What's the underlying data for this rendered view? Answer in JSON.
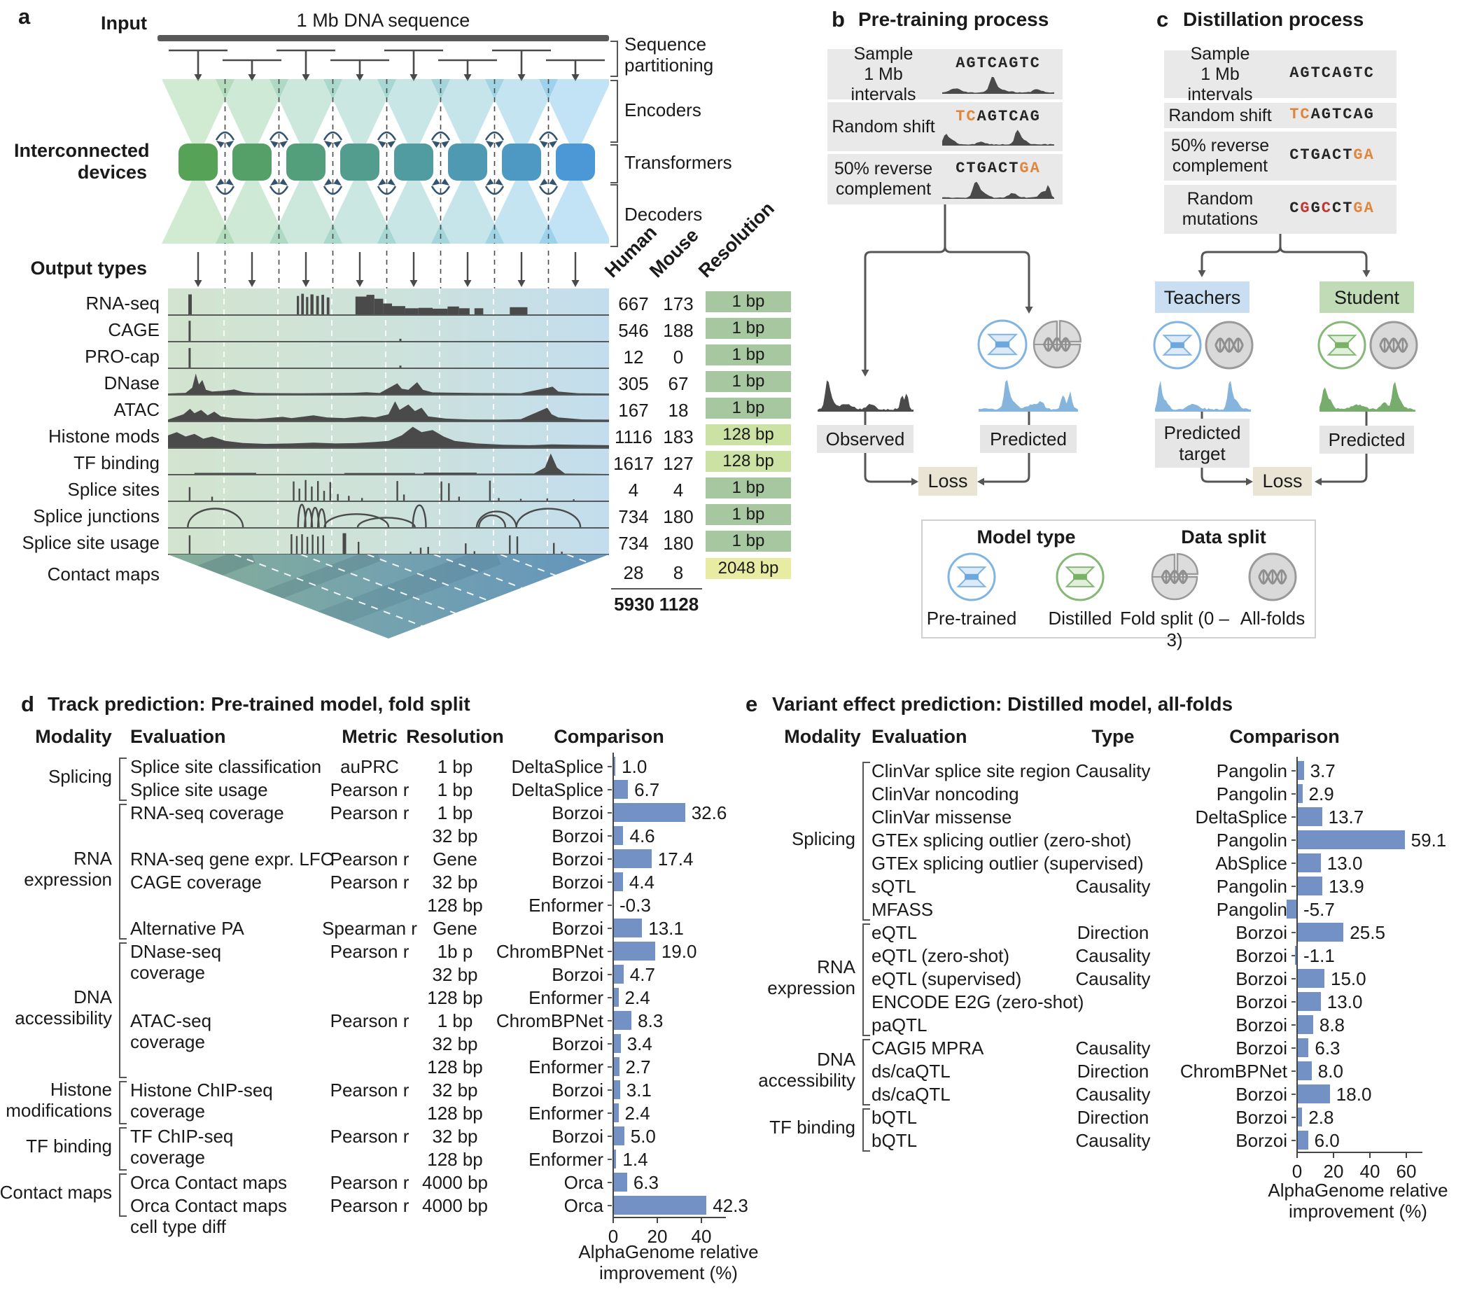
{
  "colors": {
    "bar_blue": "#7491c6",
    "res_1bp": "#a6c79f",
    "res_128bp": "#cbe2a4",
    "res_2048bp": "#e7eca2",
    "orange": "#e0863c",
    "red": "#c23535",
    "teachers_blue": "#c9def1",
    "student_green": "#c2dbb7",
    "loss_beige": "#e9e4d4",
    "box_gray": "#e9e9e9",
    "signal_dark": "#4a4a4a",
    "signal_blue": "#85b5dc",
    "signal_green": "#76ad6c"
  },
  "panel_a": {
    "label": "a",
    "input_label": "Input",
    "input_bar_label": "1 Mb DNA sequence",
    "devices_label": "Interconnected\ndevices",
    "output_label": "Output types",
    "right_labels": {
      "partitioning": "Sequence\npartitioning",
      "encoders": "Encoders",
      "transformers": "Transformers",
      "decoders": "Decoders"
    },
    "col_headers": {
      "human": "Human",
      "mouse": "Mouse",
      "resolution": "Resolution"
    },
    "tracks": [
      {
        "name": "RNA-seq",
        "human": "667",
        "mouse": "173",
        "resolution": "1 bp",
        "res_class": "g1"
      },
      {
        "name": "CAGE",
        "human": "546",
        "mouse": "188",
        "resolution": "1 bp",
        "res_class": "g1"
      },
      {
        "name": "PRO-cap",
        "human": "12",
        "mouse": "0",
        "resolution": "1 bp",
        "res_class": "g1"
      },
      {
        "name": "DNase",
        "human": "305",
        "mouse": "67",
        "resolution": "1 bp",
        "res_class": "g1"
      },
      {
        "name": "ATAC",
        "human": "167",
        "mouse": "18",
        "resolution": "1 bp",
        "res_class": "g1"
      },
      {
        "name": "Histone mods",
        "human": "1116",
        "mouse": "183",
        "resolution": "128 bp",
        "res_class": "g128"
      },
      {
        "name": "TF binding",
        "human": "1617",
        "mouse": "127",
        "resolution": "128 bp",
        "res_class": "g128"
      },
      {
        "name": "Splice sites",
        "human": "4",
        "mouse": "4",
        "resolution": "1 bp",
        "res_class": "g1"
      },
      {
        "name": "Splice junctions",
        "human": "734",
        "mouse": "180",
        "resolution": "1 bp",
        "res_class": "g1"
      },
      {
        "name": "Splice site usage",
        "human": "734",
        "mouse": "180",
        "resolution": "1 bp",
        "res_class": "g1"
      },
      {
        "name": "Contact maps",
        "human": "28",
        "mouse": "8",
        "resolution": "2048 bp",
        "res_class": "g2048"
      }
    ],
    "totals": {
      "human": "5930",
      "mouse": "1128"
    }
  },
  "panel_b": {
    "label": "b",
    "title": "Pre-training process",
    "steps": [
      {
        "label": "Sample\n1 Mb intervals",
        "seq": [
          {
            "t": "AGTCAGTC",
            "c": "k"
          }
        ]
      },
      {
        "label": "Random shift",
        "seq": [
          {
            "t": "TC",
            "c": "o"
          },
          {
            "t": "AGTCAG",
            "c": "k"
          }
        ]
      },
      {
        "label": "50% reverse\ncomplement",
        "seq": [
          {
            "t": "CTGACT",
            "c": "k"
          },
          {
            "t": "GA",
            "c": "o"
          }
        ]
      }
    ],
    "observed_label": "Observed",
    "predicted_label": "Predicted",
    "loss_label": "Loss"
  },
  "panel_c": {
    "label": "c",
    "title": "Distillation process",
    "steps": [
      {
        "label": "Sample\n1 Mb intervals",
        "seq": [
          {
            "t": "AGTCAGTC",
            "c": "k"
          }
        ]
      },
      {
        "label": "Random shift",
        "seq": [
          {
            "t": "TC",
            "c": "o"
          },
          {
            "t": "AGTCAG",
            "c": "k"
          }
        ]
      },
      {
        "label": "50% reverse\ncomplement",
        "seq": [
          {
            "t": "CTGACT",
            "c": "k"
          },
          {
            "t": "GA",
            "c": "o"
          }
        ]
      },
      {
        "label": "Random\nmutations",
        "seq": [
          {
            "t": "C",
            "c": "k"
          },
          {
            "t": "G",
            "c": "r"
          },
          {
            "t": "G",
            "c": "k"
          },
          {
            "t": "C",
            "c": "r"
          },
          {
            "t": "CT",
            "c": "k"
          },
          {
            "t": "GA",
            "c": "o"
          }
        ]
      }
    ],
    "teachers_label": "Teachers",
    "student_label": "Student",
    "predicted_target_label": "Predicted\ntarget",
    "predicted_label": "Predicted",
    "loss_label": "Loss"
  },
  "legend": {
    "model_type_title": "Model type",
    "data_split_title": "Data split",
    "items": [
      {
        "label": "Pre-trained",
        "icon": "pretrained"
      },
      {
        "label": "Distilled",
        "icon": "distilled"
      },
      {
        "label": "Fold split (0 – 3)",
        "icon": "foldsplit"
      },
      {
        "label": "All-folds",
        "icon": "allfolds"
      }
    ]
  },
  "panel_d": {
    "label": "d",
    "title": "Track prediction: Pre-trained model, fold split",
    "columns": [
      "Modality",
      "Evaluation",
      "Metric",
      "Resolution",
      "Comparison"
    ],
    "axis_label": "AlphaGenome relative improvement (%)",
    "axis_ticks": [
      0,
      20,
      40
    ],
    "groups": [
      {
        "label": "Splicing",
        "start": 0,
        "end": 1
      },
      {
        "label": "RNA\nexpression",
        "start": 2,
        "end": 7
      },
      {
        "label": "DNA\naccessibility",
        "start": 8,
        "end": 13
      },
      {
        "label": "Histone\nmodifications",
        "start": 14,
        "end": 15
      },
      {
        "label": "TF binding",
        "start": 16,
        "end": 17
      },
      {
        "label": "Contact maps",
        "start": 18,
        "end": 19
      }
    ],
    "rows": [
      {
        "evaluation": "Splice site classification",
        "metric": "auPRC",
        "resolution": "1 bp",
        "comparison": "DeltaSplice",
        "value": 1.0,
        "value_label": "1.0"
      },
      {
        "evaluation": "Splice site usage",
        "metric": "Pearson r",
        "resolution": "1 bp",
        "comparison": "DeltaSplice",
        "value": 6.7,
        "value_label": "6.7"
      },
      {
        "evaluation": "RNA-seq coverage",
        "metric": "Pearson r",
        "resolution": "1 bp",
        "comparison": "Borzoi",
        "value": 32.6,
        "value_label": "32.6"
      },
      {
        "evaluation": "",
        "metric": "",
        "resolution": "32 bp",
        "comparison": "Borzoi",
        "value": 4.6,
        "value_label": "4.6"
      },
      {
        "evaluation": "RNA-seq gene expr. LFC",
        "metric": "Pearson r",
        "resolution": "Gene",
        "comparison": "Borzoi",
        "value": 17.4,
        "value_label": "17.4"
      },
      {
        "evaluation": "CAGE coverage",
        "metric": "Pearson r",
        "resolution": "32 bp",
        "comparison": "Borzoi",
        "value": 4.4,
        "value_label": "4.4"
      },
      {
        "evaluation": "",
        "metric": "",
        "resolution": "128 bp",
        "comparison": "Enformer",
        "value": -0.3,
        "value_label": "-0.3"
      },
      {
        "evaluation": "Alternative PA",
        "metric": "Spearman r",
        "resolution": "Gene",
        "comparison": "Borzoi",
        "value": 13.1,
        "value_label": "13.1"
      },
      {
        "evaluation": "DNase-seq\ncoverage",
        "metric": "Pearson r",
        "resolution": "1b p",
        "comparison": "ChromBPNet",
        "value": 19.0,
        "value_label": "19.0"
      },
      {
        "evaluation": "",
        "metric": "",
        "resolution": "32 bp",
        "comparison": "Borzoi",
        "value": 4.7,
        "value_label": "4.7"
      },
      {
        "evaluation": "",
        "metric": "",
        "resolution": "128 bp",
        "comparison": "Enformer",
        "value": 2.4,
        "value_label": "2.4"
      },
      {
        "evaluation": "ATAC-seq\ncoverage",
        "metric": "Pearson r",
        "resolution": "1 bp",
        "comparison": "ChromBPNet",
        "value": 8.3,
        "value_label": "8.3"
      },
      {
        "evaluation": "",
        "metric": "",
        "resolution": "32 bp",
        "comparison": "Borzoi",
        "value": 3.4,
        "value_label": "3.4"
      },
      {
        "evaluation": "",
        "metric": "",
        "resolution": "128 bp",
        "comparison": "Enformer",
        "value": 2.7,
        "value_label": "2.7"
      },
      {
        "evaluation": "Histone ChIP-seq\ncoverage",
        "metric": "Pearson r",
        "resolution": "32 bp",
        "comparison": "Borzoi",
        "value": 3.1,
        "value_label": "3.1"
      },
      {
        "evaluation": "",
        "metric": "",
        "resolution": "128 bp",
        "comparison": "Enformer",
        "value": 2.4,
        "value_label": "2.4"
      },
      {
        "evaluation": "TF ChIP-seq\ncoverage",
        "metric": "Pearson r",
        "resolution": "32 bp",
        "comparison": "Borzoi",
        "value": 5.0,
        "value_label": "5.0"
      },
      {
        "evaluation": "",
        "metric": "",
        "resolution": "128 bp",
        "comparison": "Enformer",
        "value": 1.4,
        "value_label": "1.4"
      },
      {
        "evaluation": "Orca Contact maps",
        "metric": "Pearson r",
        "resolution": "4000 bp",
        "comparison": "Orca",
        "value": 6.3,
        "value_label": "6.3"
      },
      {
        "evaluation": "Orca Contact maps\ncell type diff",
        "metric": "Pearson r",
        "resolution": "4000 bp",
        "comparison": "Orca",
        "value": 42.3,
        "value_label": "42.3"
      }
    ]
  },
  "panel_e": {
    "label": "e",
    "title": "Variant effect prediction: Distilled model, all-folds",
    "columns": [
      "Modality",
      "Evaluation",
      "Type",
      "Comparison"
    ],
    "axis_label": "AlphaGenome relative improvement (%)",
    "axis_ticks": [
      0,
      20,
      40,
      60
    ],
    "groups": [
      {
        "label": "Splicing",
        "start": 0,
        "end": 6
      },
      {
        "label": "RNA\nexpression",
        "start": 7,
        "end": 11
      },
      {
        "label": "DNA\naccessibility",
        "start": 12,
        "end": 14
      },
      {
        "label": "TF binding",
        "start": 15,
        "end": 16
      }
    ],
    "rows": [
      {
        "evaluation": "ClinVar splice site region",
        "type": "Causality",
        "comparison": "Pangolin",
        "value": 3.7,
        "value_label": "3.7"
      },
      {
        "evaluation": "ClinVar noncoding",
        "type": "",
        "comparison": "Pangolin",
        "value": 2.9,
        "value_label": "2.9"
      },
      {
        "evaluation": "ClinVar missense",
        "type": "",
        "comparison": "DeltaSplice",
        "value": 13.7,
        "value_label": "13.7"
      },
      {
        "evaluation": "GTEx splicing outlier (zero-shot)",
        "type": "",
        "comparison": "Pangolin",
        "value": 59.1,
        "value_label": "59.1"
      },
      {
        "evaluation": "GTEx splicing outlier (supervised)",
        "type": "",
        "comparison": "AbSplice",
        "value": 13.0,
        "value_label": "13.0"
      },
      {
        "evaluation": "sQTL",
        "type": "Causality",
        "comparison": "Pangolin",
        "value": 13.9,
        "value_label": "13.9"
      },
      {
        "evaluation": "MFASS",
        "type": "",
        "comparison": "Pangolin",
        "value": -5.7,
        "value_label": "-5.7"
      },
      {
        "evaluation": "eQTL",
        "type": "Direction",
        "comparison": "Borzoi",
        "value": 25.5,
        "value_label": "25.5"
      },
      {
        "evaluation": "eQTL (zero-shot)",
        "type": "Causality",
        "comparison": "Borzoi",
        "value": -1.1,
        "value_label": "-1.1"
      },
      {
        "evaluation": "eQTL (supervised)",
        "type": "Causality",
        "comparison": "Borzoi",
        "value": 15.0,
        "value_label": "15.0"
      },
      {
        "evaluation": "ENCODE E2G (zero-shot)",
        "type": "",
        "comparison": "Borzoi",
        "value": 13.0,
        "value_label": "13.0"
      },
      {
        "evaluation": "paQTL",
        "type": "",
        "comparison": "Borzoi",
        "value": 8.8,
        "value_label": "8.8"
      },
      {
        "evaluation": "CAGI5 MPRA",
        "type": "Causality",
        "comparison": "Borzoi",
        "value": 6.3,
        "value_label": "6.3"
      },
      {
        "evaluation": "ds/caQTL",
        "type": "Direction",
        "comparison": "ChromBPNet",
        "value": 8.0,
        "value_label": "8.0"
      },
      {
        "evaluation": "ds/caQTL",
        "type": "Causality",
        "comparison": "Borzoi",
        "value": 18.0,
        "value_label": "18.0"
      },
      {
        "evaluation": "bQTL",
        "type": "Direction",
        "comparison": "Borzoi",
        "value": 2.8,
        "value_label": "2.8"
      },
      {
        "evaluation": "bQTL",
        "type": "Causality",
        "comparison": "Borzoi",
        "value": 6.0,
        "value_label": "6.0"
      }
    ]
  },
  "chart_data": [
    {
      "type": "bar",
      "panel": "d",
      "title": "Track prediction: Pre-trained model, fold split",
      "orientation": "horizontal",
      "xlabel": "AlphaGenome relative improvement (%)",
      "xticks": [
        0,
        20,
        40
      ],
      "xlim": [
        -2,
        48
      ],
      "grid": false,
      "legend_position": "none",
      "categories": [
        "DeltaSplice",
        "DeltaSplice",
        "Borzoi",
        "Borzoi",
        "Borzoi",
        "Borzoi",
        "Enformer",
        "Borzoi",
        "ChromBPNet",
        "Borzoi",
        "Enformer",
        "ChromBPNet",
        "Borzoi",
        "Enformer",
        "Borzoi",
        "Enformer",
        "Borzoi",
        "Enformer",
        "Orca",
        "Orca"
      ],
      "values": [
        1.0,
        6.7,
        32.6,
        4.6,
        17.4,
        4.4,
        -0.3,
        13.1,
        19.0,
        4.7,
        2.4,
        8.3,
        3.4,
        2.7,
        3.1,
        2.4,
        5.0,
        1.4,
        6.3,
        42.3
      ]
    },
    {
      "type": "bar",
      "panel": "e",
      "title": "Variant effect prediction: Distilled model, all-folds",
      "orientation": "horizontal",
      "xlabel": "AlphaGenome relative improvement (%)",
      "xticks": [
        0,
        20,
        40,
        60
      ],
      "xlim": [
        -8,
        65
      ],
      "grid": false,
      "legend_position": "none",
      "categories": [
        "Pangolin",
        "Pangolin",
        "DeltaSplice",
        "Pangolin",
        "AbSplice",
        "Pangolin",
        "Pangolin",
        "Borzoi",
        "Borzoi",
        "Borzoi",
        "Borzoi",
        "Borzoi",
        "Borzoi",
        "ChromBPNet",
        "Borzoi",
        "Borzoi",
        "Borzoi"
      ],
      "values": [
        3.7,
        2.9,
        13.7,
        59.1,
        13.0,
        13.9,
        -5.7,
        25.5,
        -1.1,
        15.0,
        13.0,
        8.8,
        6.3,
        8.0,
        18.0,
        2.8,
        6.0
      ]
    }
  ]
}
